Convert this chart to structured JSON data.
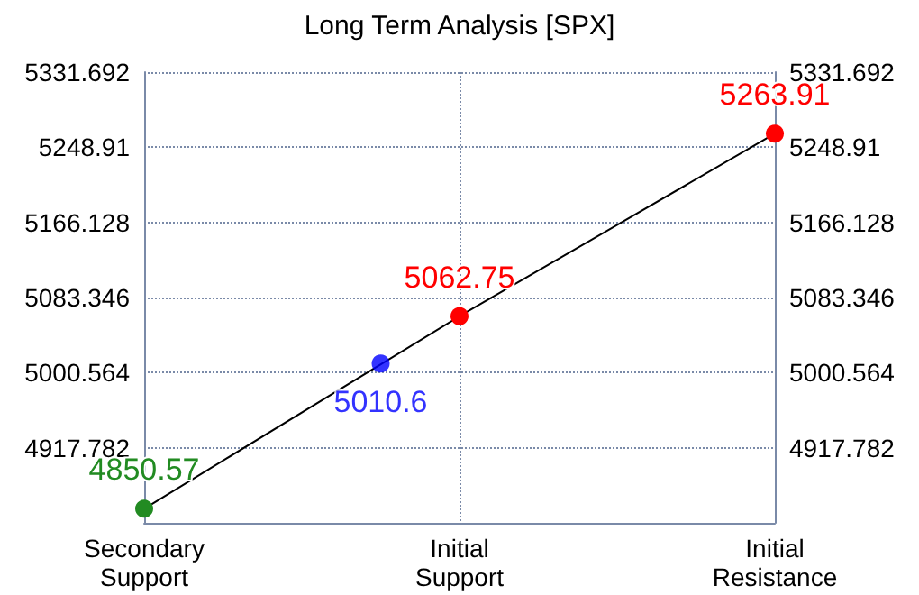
{
  "chart_data": {
    "type": "line",
    "title": "Long Term Analysis [SPX]",
    "categories": [
      "Secondary\nSupport",
      null,
      null,
      null,
      "Initial\nSupport",
      null,
      null,
      null,
      "Initial\nResistance"
    ],
    "ylim": [
      4835,
      5331.692
    ],
    "yticks": [
      4917.782,
      5000.564,
      5083.346,
      5166.128,
      5248.91,
      5331.692
    ],
    "y2lim": [
      4835,
      5331.692
    ],
    "y2ticks": [
      4917.782,
      5000.564,
      5083.346,
      5166.128,
      5248.91,
      5331.692
    ],
    "series": [
      {
        "color": "#000000",
        "colors": [
          "#228b22",
          null,
          null,
          null,
          "#ff0000",
          null,
          null,
          null,
          "#ff0000"
        ],
        "values": [
          4850.57,
          null,
          null,
          null,
          5062.75,
          null,
          null,
          null,
          5263.91
        ]
      },
      {
        "type": "scatter",
        "color": "#0000ff",
        "values": [
          null,
          null,
          null,
          5010.6,
          null,
          null,
          null,
          null,
          null
        ]
      }
    ],
    "data_labels": true,
    "grid": true,
    "marker": "circle",
    "line_style": "solid"
  }
}
